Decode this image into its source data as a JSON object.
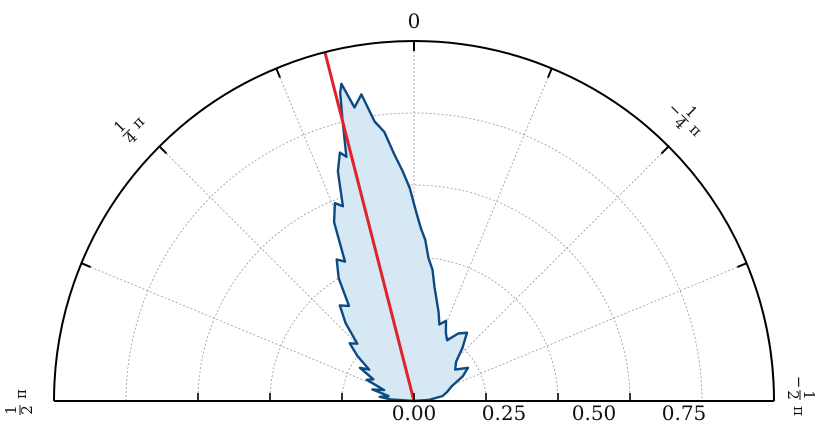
{
  "chart_data": {
    "type": "area",
    "projection": "polar-half",
    "theta_range_rad": [
      -1.5708,
      1.5708
    ],
    "zero_direction": "top",
    "theta_direction": "clockwise-negative",
    "r_ticks": [
      "0.00",
      "0.25",
      "0.50",
      "0.75"
    ],
    "r_tick_values": [
      0,
      0.25,
      0.5,
      0.75
    ],
    "r_max": 1.25,
    "angle_labels": {
      "zero": "0",
      "left_quarter_num": "1",
      "left_quarter_den": "4",
      "left_half_num": "1",
      "left_half_den": "2",
      "right_quarter_num": "1",
      "right_quarter_den": "4",
      "right_half_num": "1",
      "right_half_den": "2",
      "pi": "π",
      "minus": "−"
    },
    "grid": true,
    "series": [
      {
        "values_theta_r": [
          [
            1.5,
            0.08
          ],
          [
            1.45,
            0.12
          ],
          [
            1.38,
            0.09
          ],
          [
            1.3,
            0.15
          ],
          [
            1.22,
            0.11
          ],
          [
            1.15,
            0.18
          ],
          [
            1.08,
            0.16
          ],
          [
            1.02,
            0.22
          ],
          [
            0.96,
            0.19
          ],
          [
            0.9,
            0.25
          ],
          [
            0.84,
            0.3
          ],
          [
            0.78,
            0.28
          ],
          [
            0.72,
            0.36
          ],
          [
            0.66,
            0.42
          ],
          [
            0.6,
            0.4
          ],
          [
            0.55,
            0.5
          ],
          [
            0.5,
            0.56
          ],
          [
            0.46,
            0.54
          ],
          [
            0.42,
            0.68
          ],
          [
            0.38,
            0.74
          ],
          [
            0.35,
            0.72
          ],
          [
            0.32,
            0.84
          ],
          [
            0.29,
            0.9
          ],
          [
            0.27,
            0.88
          ],
          [
            0.25,
            1.0
          ],
          [
            0.235,
            1.1
          ],
          [
            0.225,
            1.13
          ],
          [
            0.2,
            1.04
          ],
          [
            0.17,
            1.08
          ],
          [
            0.14,
            0.98
          ],
          [
            0.11,
            0.94
          ],
          [
            0.08,
            0.86
          ],
          [
            0.05,
            0.8
          ],
          [
            0.02,
            0.74
          ],
          [
            -0.01,
            0.66
          ],
          [
            -0.04,
            0.6
          ],
          [
            -0.07,
            0.56
          ],
          [
            -0.1,
            0.5
          ],
          [
            -0.14,
            0.46
          ],
          [
            -0.18,
            0.4
          ],
          [
            -0.22,
            0.36
          ],
          [
            -0.27,
            0.32
          ],
          [
            -0.32,
            0.28
          ],
          [
            -0.38,
            0.3
          ],
          [
            -0.44,
            0.26
          ],
          [
            -0.5,
            0.24
          ],
          [
            -0.58,
            0.28
          ],
          [
            -0.66,
            0.3
          ],
          [
            -0.74,
            0.25
          ],
          [
            -0.82,
            0.2
          ],
          [
            -0.92,
            0.18
          ],
          [
            -1.02,
            0.22
          ],
          [
            -1.1,
            0.19
          ],
          [
            -1.2,
            0.14
          ],
          [
            -1.3,
            0.12
          ],
          [
            -1.4,
            0.1
          ],
          [
            -1.5,
            0.05
          ]
        ]
      }
    ],
    "mean_direction_rad": 0.25,
    "mean_direction_r": 1.25
  },
  "colors": {
    "fill": "#d6e8f4",
    "outline": "#0d4a82",
    "mean_line": "#e0222b",
    "frame": "#000000",
    "grid": "#9a9a9a"
  }
}
